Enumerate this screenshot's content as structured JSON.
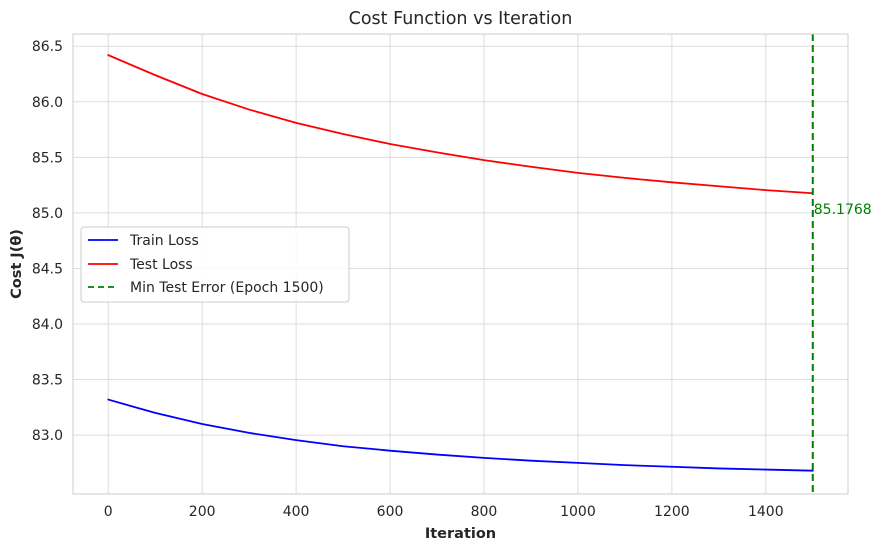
{
  "chart_data": {
    "type": "line",
    "title": "Cost Function vs Iteration",
    "xlabel": "Iteration",
    "ylabel": "Cost J(θ)",
    "xlim": [
      -75,
      1575
    ],
    "ylim": [
      82.47,
      86.61
    ],
    "xticks": [
      0,
      200,
      400,
      600,
      800,
      1000,
      1200,
      1400
    ],
    "yticks": [
      83.0,
      83.5,
      84.0,
      84.5,
      85.0,
      85.5,
      86.0,
      86.5
    ],
    "grid": true,
    "legend_position": "center-left",
    "series": [
      {
        "name": "Train Loss",
        "color": "#0000ff",
        "x": [
          0,
          100,
          200,
          300,
          400,
          500,
          600,
          700,
          800,
          900,
          1000,
          1100,
          1200,
          1300,
          1400,
          1500
        ],
        "values": [
          83.32,
          83.2,
          83.1,
          83.02,
          82.955,
          82.9,
          82.86,
          82.825,
          82.795,
          82.77,
          82.75,
          82.73,
          82.715,
          82.7,
          82.69,
          82.68
        ]
      },
      {
        "name": "Test Loss",
        "color": "#ff0000",
        "x": [
          0,
          100,
          200,
          300,
          400,
          500,
          600,
          700,
          800,
          900,
          1000,
          1100,
          1200,
          1300,
          1400,
          1500
        ],
        "values": [
          86.42,
          86.24,
          86.07,
          85.93,
          85.81,
          85.71,
          85.62,
          85.545,
          85.475,
          85.415,
          85.36,
          85.315,
          85.275,
          85.24,
          85.205,
          85.177
        ]
      }
    ],
    "vline": {
      "x": 1500,
      "label": "Min Test Error (Epoch 1500)",
      "color": "#008000",
      "style": "dashed"
    },
    "annotation": {
      "text": "85.1768",
      "x": 1500,
      "y": 85.1768,
      "color": "#008000"
    }
  }
}
